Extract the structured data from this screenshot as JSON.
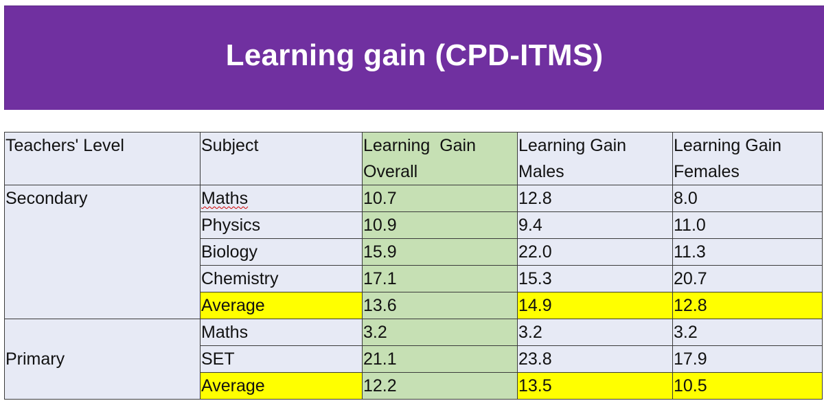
{
  "title": "Learning gain (CPD-ITMS)",
  "colors": {
    "banner": "#7030a0",
    "cell_default": "#e7eaf5",
    "overall_column": "#c6e0b4",
    "average_highlight": "#ffff00"
  },
  "table": {
    "headers": {
      "level": "Teachers' Level",
      "subject": "Subject",
      "overall": "Learning  Gain Overall",
      "males": "Learning Gain Males",
      "females": "Learning Gain Females"
    },
    "groups": [
      {
        "level": "Secondary",
        "rows": [
          {
            "subject": "Maths",
            "overall": "10.7",
            "males": "12.8",
            "females": "8.0"
          },
          {
            "subject": "Physics",
            "overall": "10.9",
            "males": "9.4",
            "females": "11.0"
          },
          {
            "subject": "Biology",
            "overall": "15.9",
            "males": "22.0",
            "females": "11.3"
          },
          {
            "subject": "Chemistry",
            "overall": "17.1",
            "males": "15.3",
            "females": "20.7"
          },
          {
            "subject": "Average",
            "overall": "13.6",
            "males": "14.9",
            "females": "12.8"
          }
        ]
      },
      {
        "level": "Primary",
        "rows": [
          {
            "subject": "Maths",
            "overall": "3.2",
            "males": "3.2",
            "females": "3.2"
          },
          {
            "subject": "SET",
            "overall": "21.1",
            "males": "23.8",
            "females": "17.9"
          },
          {
            "subject": "Average",
            "overall": "12.2",
            "males": "13.5",
            "females": "10.5"
          }
        ]
      }
    ]
  }
}
